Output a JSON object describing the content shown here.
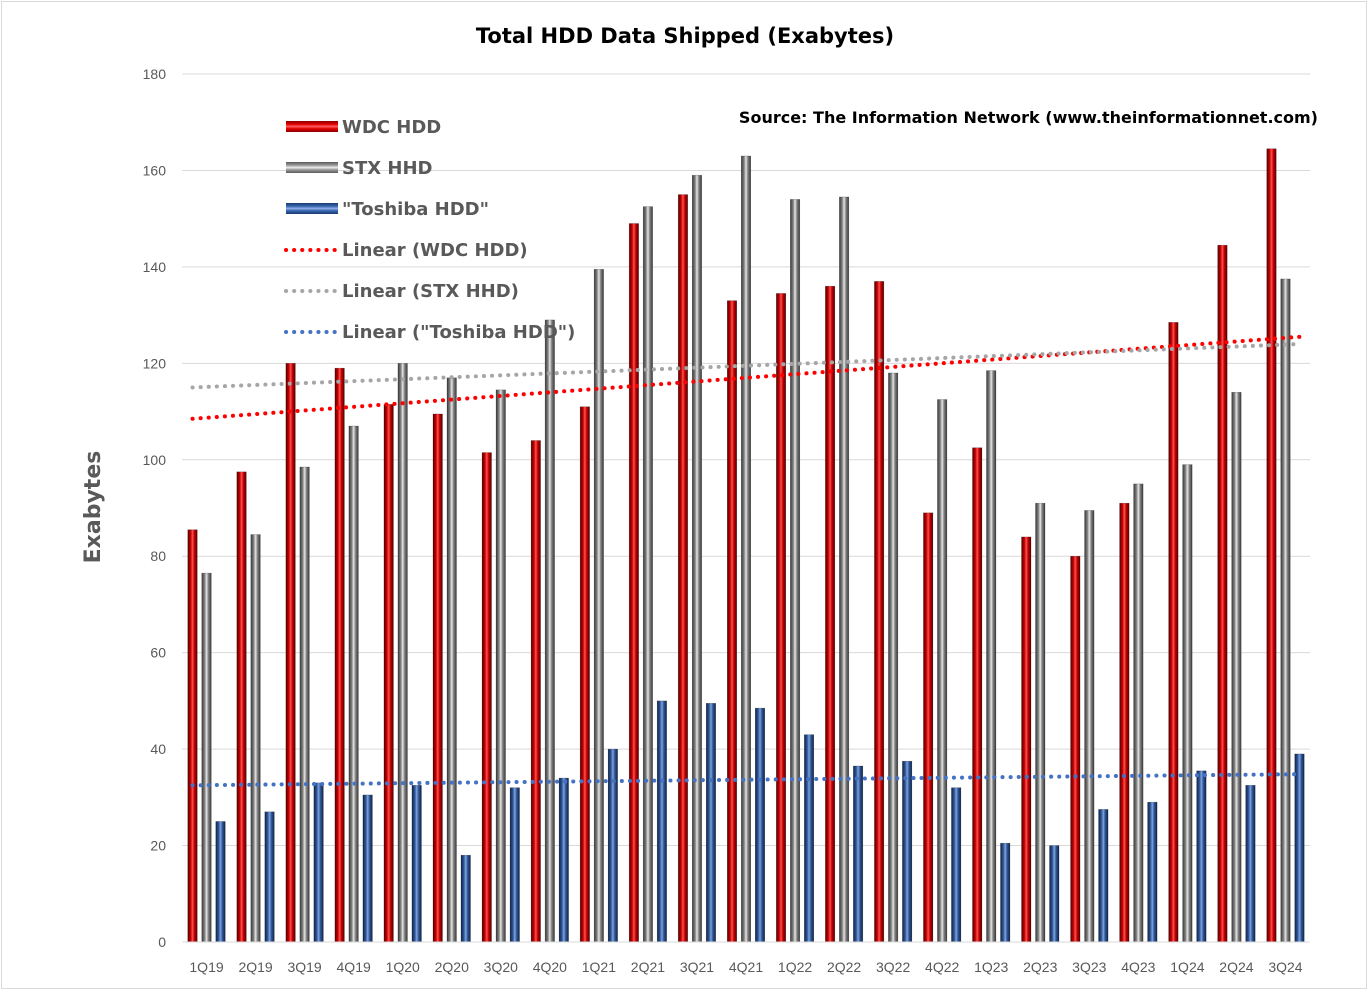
{
  "chart_data": {
    "type": "bar",
    "title": "Total HDD Data Shipped (Exabytes)",
    "source_note": "Source: The Information Network (www.theinformationnet.com)",
    "xlabel": "",
    "ylabel": "Exabytes",
    "ylim": [
      0,
      180
    ],
    "yticks": [
      0,
      20,
      40,
      60,
      80,
      100,
      120,
      140,
      160,
      180
    ],
    "grid": true,
    "legend_position": "top-left",
    "categories": [
      "1Q19",
      "2Q19",
      "3Q19",
      "4Q19",
      "1Q20",
      "2Q20",
      "3Q20",
      "4Q20",
      "1Q21",
      "2Q21",
      "3Q21",
      "4Q21",
      "1Q22",
      "2Q22",
      "3Q22",
      "4Q22",
      "1Q23",
      "2Q23",
      "3Q23",
      "4Q23",
      "1Q24",
      "2Q24",
      "3Q24"
    ],
    "series": [
      {
        "name": "WDC HDD",
        "color": "#c00000",
        "values": [
          85.5,
          97.5,
          120,
          119,
          111.5,
          109.5,
          101.5,
          104,
          111,
          149,
          155,
          133,
          134.5,
          136,
          137,
          89,
          102.5,
          84,
          80,
          91,
          128.5,
          144.5,
          164.5
        ]
      },
      {
        "name": "STX HHD",
        "color": "#808080",
        "values": [
          76.5,
          84.5,
          98.5,
          107,
          120,
          117,
          114.5,
          129,
          139.5,
          152.5,
          159,
          163,
          154,
          154.5,
          118,
          112.5,
          118.5,
          91,
          89.5,
          95,
          99,
          114,
          137.5
        ]
      },
      {
        "name": "\"Toshiba HDD\"",
        "color": "#2f5597",
        "values": [
          25,
          27,
          33,
          30.5,
          32.5,
          18,
          32,
          34,
          40,
          50,
          49.5,
          48.5,
          43,
          36.5,
          37.5,
          32,
          20.5,
          20,
          27.5,
          29,
          35.5,
          32.5,
          39
        ]
      }
    ],
    "trendlines": [
      {
        "name": "Linear (WDC HDD)",
        "series": "WDC HDD",
        "color": "#ff0000",
        "start": 108.5,
        "end": 125.5
      },
      {
        "name": "Linear (STX HHD)",
        "series": "STX HHD",
        "color": "#a6a6a6",
        "start": 115,
        "end": 124
      },
      {
        "name": "Linear (\"Toshiba HDD\")",
        "series": "\"Toshiba HDD\"",
        "color": "#4472c4",
        "start": 32.5,
        "end": 34.8
      }
    ]
  }
}
